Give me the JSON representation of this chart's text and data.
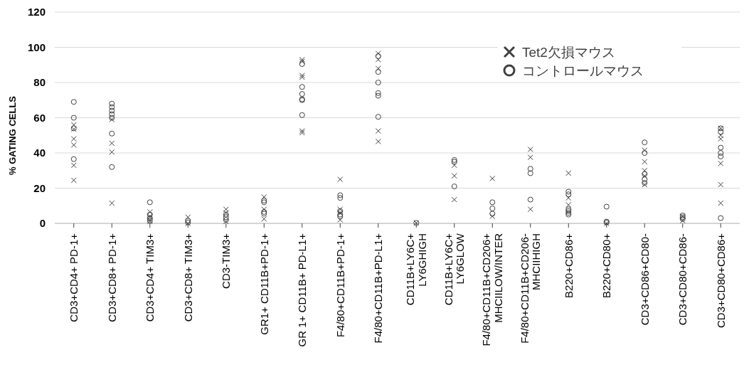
{
  "chart_data": {
    "type": "scatter",
    "ylabel": "% GATING CELLS",
    "categories": [
      "CD3+CD4+  PD-1+",
      "CD3+CD8+ PD-1+",
      "CD3+CD4+ TIM3+",
      "CD3+CD8+ TIM3+",
      "CD3-TIM3+",
      "GR1+ CD11B+PD-1+",
      "GR 1+ CD11B+ PD-L1+",
      "F4/80+CD11B+PD-1+",
      "F4/80+CD11B+PD-L1+",
      "CD11B+LY6C+\nLY6GHIGH",
      "CD11B+LY6C+\nLY6GLOW",
      "F4/80+CD11B+CD206+\nMHCIILOW/INTER",
      "F4/80+CD11B+CD206-\nMHCIIHIGH",
      "B220+CD86+",
      "B220+CD80+",
      "CD3+CD86+CD80-",
      "CD3+CD80+CD86-",
      "CD3+CD80+CD86+"
    ],
    "series": [
      {
        "name": "Tet2欠損マウス",
        "color": "#404040",
        "marker": "cross",
        "x": [
          "CD3+CD4+  PD-1+",
          "CD3+CD4+  PD-1+",
          "CD3+CD4+  PD-1+",
          "CD3+CD4+  PD-1+",
          "CD3+CD4+  PD-1+",
          "CD3+CD4+  PD-1+",
          "CD3+CD8+ PD-1+",
          "CD3+CD8+ PD-1+",
          "CD3+CD8+ PD-1+",
          "CD3+CD8+ PD-1+",
          "CD3+CD4+ TIM3+",
          "CD3+CD4+ TIM3+",
          "CD3+CD4+ TIM3+",
          "CD3+CD4+ TIM3+",
          "CD3+CD8+ TIM3+",
          "CD3+CD8+ TIM3+",
          "CD3-TIM3+",
          "CD3-TIM3+",
          "CD3-TIM3+",
          "GR1+ CD11B+PD-1+",
          "GR1+ CD11B+PD-1+",
          "GR1+ CD11B+PD-1+",
          "GR 1+ CD11B+ PD-L1+",
          "GR 1+ CD11B+ PD-L1+",
          "GR 1+ CD11B+ PD-L1+",
          "GR 1+ CD11B+ PD-L1+",
          "GR 1+ CD11B+ PD-L1+",
          "GR 1+ CD11B+ PD-L1+",
          "F4/80+CD11B+PD-1+",
          "F4/80+CD11B+PD-1+",
          "F4/80+CD11B+PD-1+",
          "F4/80+CD11B+PD-1+",
          "F4/80+CD11B+PD-L1+",
          "F4/80+CD11B+PD-L1+",
          "F4/80+CD11B+PD-L1+",
          "F4/80+CD11B+PD-L1+",
          "F4/80+CD11B+PD-L1+",
          "CD11B+LY6C+\nLY6GHIGH",
          "CD11B+LY6C+\nLY6GLOW",
          "CD11B+LY6C+\nLY6GLOW",
          "CD11B+LY6C+\nLY6GLOW",
          "F4/80+CD11B+CD206+\nMHCIILOW/INTER",
          "F4/80+CD11B+CD206+\nMHCIILOW/INTER",
          "F4/80+CD11B+CD206-\nMHCIIHIGH",
          "F4/80+CD11B+CD206-\nMHCIIHIGH",
          "F4/80+CD11B+CD206-\nMHCIIHIGH",
          "B220+CD86+",
          "B220+CD86+",
          "B220+CD86+",
          "B220+CD80+",
          "CD3+CD86+CD80-",
          "CD3+CD86+CD80-",
          "CD3+CD86+CD80-",
          "CD3+CD86+CD80-",
          "CD3+CD86+CD80-",
          "CD3+CD80+CD86-",
          "CD3+CD80+CD86-",
          "CD3+CD80+CD86+",
          "CD3+CD80+CD86+",
          "CD3+CD80+CD86+",
          "CD3+CD80+CD86+",
          "CD3+CD80+CD86+",
          "CD3+CD80+CD86+"
        ],
        "values": [
          56,
          53.5,
          48,
          44.5,
          33,
          24.5,
          59,
          45.5,
          40.5,
          11.5,
          6.5,
          4,
          2,
          1,
          3.5,
          0,
          8,
          6,
          1,
          15,
          8,
          2.5,
          93,
          92,
          84,
          83,
          52.5,
          51.5,
          25,
          8,
          6,
          2,
          96.5,
          93,
          88,
          52.5,
          46.5,
          0.3,
          33,
          27,
          13.5,
          25.5,
          4,
          42,
          37.5,
          8,
          28.5,
          14.5,
          10.5,
          0,
          41.5,
          35,
          30,
          27,
          22,
          4,
          1.5,
          54,
          50,
          48,
          34,
          22,
          11.5
        ]
      },
      {
        "name": "コントロールマウス",
        "color": "#404040",
        "marker": "circle",
        "x": [
          "CD3+CD4+  PD-1+",
          "CD3+CD4+  PD-1+",
          "CD3+CD4+  PD-1+",
          "CD3+CD4+  PD-1+",
          "CD3+CD8+ PD-1+",
          "CD3+CD8+ PD-1+",
          "CD3+CD8+ PD-1+",
          "CD3+CD8+ PD-1+",
          "CD3+CD8+ PD-1+",
          "CD3+CD8+ PD-1+",
          "CD3+CD8+ PD-1+",
          "CD3+CD4+ TIM3+",
          "CD3+CD4+ TIM3+",
          "CD3+CD4+ TIM3+",
          "CD3+CD4+ TIM3+",
          "CD3+CD8+ TIM3+",
          "CD3+CD8+ TIM3+",
          "CD3-TIM3+",
          "CD3-TIM3+",
          "CD3-TIM3+",
          "GR1+ CD11B+PD-1+",
          "GR1+ CD11B+PD-1+",
          "GR1+ CD11B+PD-1+",
          "GR1+ CD11B+PD-1+",
          "GR 1+ CD11B+ PD-L1+",
          "GR 1+ CD11B+ PD-L1+",
          "GR 1+ CD11B+ PD-L1+",
          "GR 1+ CD11B+ PD-L1+",
          "GR 1+ CD11B+ PD-L1+",
          "GR 1+ CD11B+ PD-L1+",
          "F4/80+CD11B+PD-1+",
          "F4/80+CD11B+PD-1+",
          "F4/80+CD11B+PD-1+",
          "F4/80+CD11B+PD-1+",
          "F4/80+CD11B+PD-1+",
          "F4/80+CD11B+PD-L1+",
          "F4/80+CD11B+PD-L1+",
          "F4/80+CD11B+PD-L1+",
          "F4/80+CD11B+PD-L1+",
          "F4/80+CD11B+PD-L1+",
          "F4/80+CD11B+PD-L1+",
          "CD11B+LY6C+\nLY6GHIGH",
          "CD11B+LY6C+\nLY6GLOW",
          "CD11B+LY6C+\nLY6GLOW",
          "CD11B+LY6C+\nLY6GLOW",
          "F4/80+CD11B+CD206+\nMHCIILOW/INTER",
          "F4/80+CD11B+CD206+\nMHCIILOW/INTER",
          "F4/80+CD11B+CD206+\nMHCIILOW/INTER",
          "F4/80+CD11B+CD206-\nMHCIIHIGH",
          "F4/80+CD11B+CD206-\nMHCIIHIGH",
          "F4/80+CD11B+CD206-\nMHCIIHIGH",
          "B220+CD86+",
          "B220+CD86+",
          "B220+CD86+",
          "B220+CD86+",
          "B220+CD86+",
          "B220+CD86+",
          "B220+CD80+",
          "B220+CD80+",
          "B220+CD80+",
          "CD3+CD86+CD80-",
          "CD3+CD86+CD80-",
          "CD3+CD86+CD80-",
          "CD3+CD86+CD80-",
          "CD3+CD86+CD80-",
          "CD3+CD80+CD86-",
          "CD3+CD80+CD86-",
          "CD3+CD80+CD86-",
          "CD3+CD80+CD86+",
          "CD3+CD80+CD86+",
          "CD3+CD80+CD86+",
          "CD3+CD80+CD86+",
          "CD3+CD80+CD86+",
          "CD3+CD80+CD86+"
        ],
        "values": [
          69,
          60,
          54,
          36.5,
          68,
          66,
          64,
          62,
          60,
          51,
          32,
          12,
          5,
          3,
          1.5,
          1.5,
          0.5,
          5,
          3.5,
          2,
          13,
          12,
          6.5,
          5.5,
          90.5,
          77.5,
          73.5,
          70.5,
          70,
          61.5,
          16,
          14.5,
          7,
          5,
          4,
          95,
          86,
          80,
          74,
          72.5,
          60.5,
          0.3,
          36,
          35,
          21,
          12,
          8.5,
          5.5,
          31,
          28.5,
          13.5,
          18,
          16.5,
          8,
          7,
          6,
          5,
          9.5,
          1,
          0.5,
          46,
          40,
          28,
          25,
          23,
          4.5,
          3.5,
          2.5,
          54,
          52,
          43,
          40,
          38,
          3
        ]
      }
    ],
    "ylim": [
      0,
      120
    ],
    "yticks": [
      0,
      20,
      40,
      60,
      80,
      100,
      120
    ],
    "grid": "y",
    "legend": "top right"
  }
}
